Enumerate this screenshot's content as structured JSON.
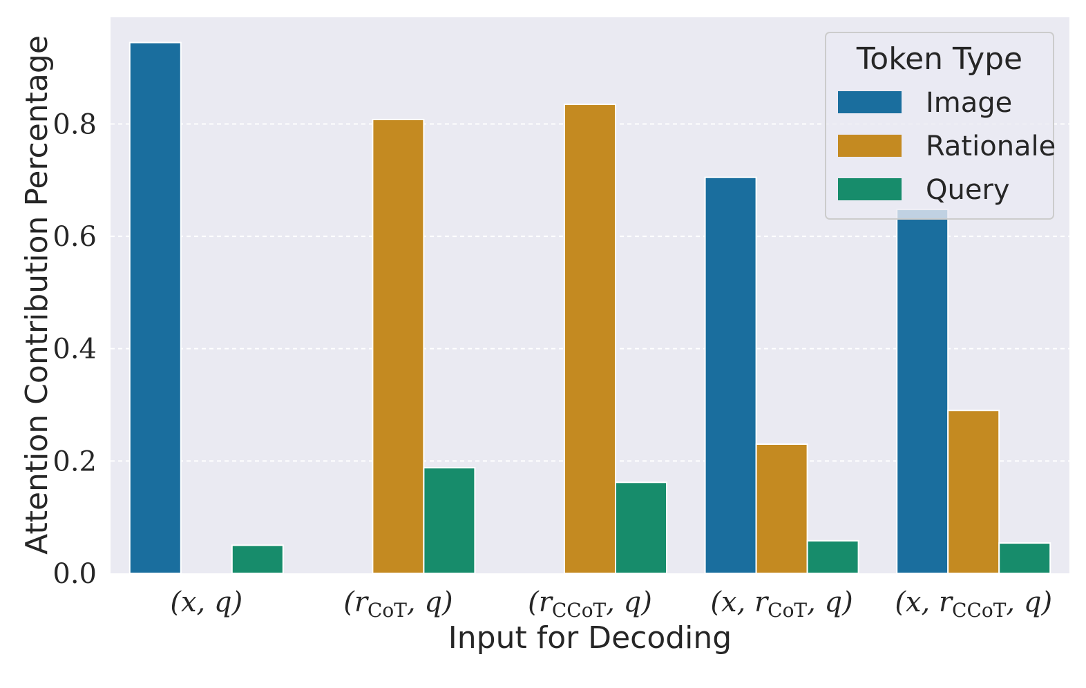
{
  "chart_data": {
    "type": "bar",
    "categories": [
      "(x, q)",
      "(r_CoT, q)",
      "(r_CCoT, q)",
      "(x, r_CoT, q)",
      "(x, r_CCoT, q)"
    ],
    "category_display": [
      {
        "base": "(x, q)",
        "sub": ""
      },
      {
        "base": "(r",
        "sub": "CoT",
        "tail": ", q)"
      },
      {
        "base": "(r",
        "sub": "CCoT",
        "tail": ", q)"
      },
      {
        "base": "(x, r",
        "sub": "CoT",
        "tail": ", q)"
      },
      {
        "base": "(x, r",
        "sub": "CCoT",
        "tail": ", q)"
      }
    ],
    "series": [
      {
        "name": "Image",
        "color": "#1a6e9e",
        "values": [
          0.945,
          0.0,
          0.0,
          0.705,
          0.648
        ]
      },
      {
        "name": "Rationale",
        "color": "#c48a21",
        "values": [
          0.0,
          0.808,
          0.835,
          0.23,
          0.29
        ]
      },
      {
        "name": "Query",
        "color": "#178c6b",
        "values": [
          0.05,
          0.188,
          0.162,
          0.058,
          0.054
        ]
      }
    ],
    "xlabel": "Input for Decoding",
    "ylabel": "Attention Contribution Percentage",
    "ylim": [
      0,
      0.99
    ],
    "yticks": [
      "0.0",
      "0.2",
      "0.4",
      "0.6",
      "0.8"
    ],
    "ytick_values": [
      0.0,
      0.2,
      0.4,
      0.6,
      0.8
    ],
    "grid": true,
    "legend": {
      "title": "Token Type",
      "placement": "top-right"
    },
    "background": "#eaeaf2"
  }
}
